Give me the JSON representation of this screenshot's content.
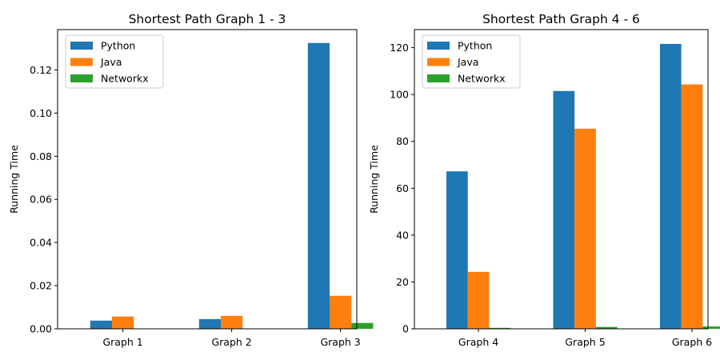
{
  "chart_data": [
    {
      "type": "bar",
      "title": "Shortest Path Graph 1 - 3",
      "xlabel": "",
      "ylabel": "Running Time",
      "categories": [
        "Graph 1",
        "Graph 2",
        "Graph 3"
      ],
      "ylim": [
        0,
        0.1387
      ],
      "yticks": [
        0.0,
        0.02,
        0.04,
        0.06,
        0.08,
        0.1,
        0.12
      ],
      "ytick_labels": [
        "0.00",
        "0.02",
        "0.04",
        "0.06",
        "0.08",
        "0.10",
        "0.12"
      ],
      "grid": false,
      "legend_position": "upper-left",
      "series": [
        {
          "name": "Python",
          "color": "#1f77b4",
          "values": [
            0.0038,
            0.0045,
            0.1325
          ]
        },
        {
          "name": "Java",
          "color": "#ff7f0e",
          "values": [
            0.0057,
            0.006,
            0.0153
          ]
        },
        {
          "name": "Networkx",
          "color": "#2ca02c",
          "values": [
            0.0,
            0.0,
            0.0027
          ]
        }
      ]
    },
    {
      "type": "bar",
      "title": "Shortest Path Graph 4 - 6",
      "xlabel": "",
      "ylabel": "Running Time",
      "categories": [
        "Graph 4",
        "Graph 5",
        "Graph 6"
      ],
      "ylim": [
        0,
        127.7
      ],
      "yticks": [
        0,
        20,
        40,
        60,
        80,
        100,
        120
      ],
      "ytick_labels": [
        "0",
        "20",
        "40",
        "60",
        "80",
        "100",
        "120"
      ],
      "grid": false,
      "legend_position": "upper-left",
      "series": [
        {
          "name": "Python",
          "color": "#1f77b4",
          "values": [
            67.2,
            101.5,
            121.6
          ]
        },
        {
          "name": "Java",
          "color": "#ff7f0e",
          "values": [
            24.3,
            85.4,
            104.3
          ]
        },
        {
          "name": "Networkx",
          "color": "#2ca02c",
          "values": [
            0.4,
            0.8,
            1.0
          ]
        }
      ]
    }
  ]
}
